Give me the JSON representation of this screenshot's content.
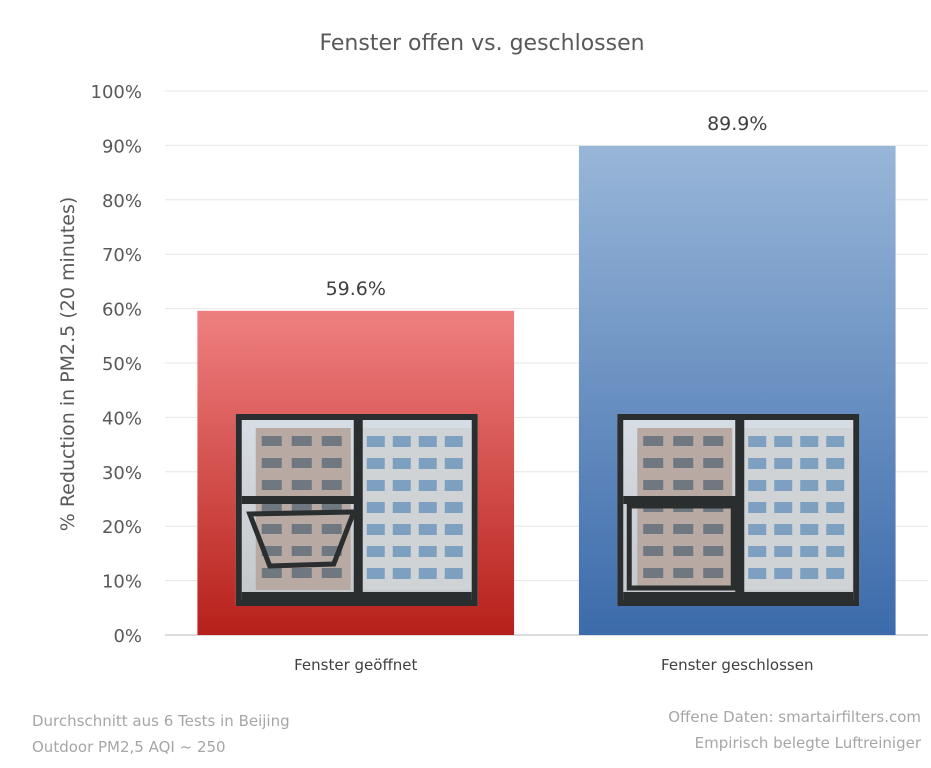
{
  "chart_data": {
    "type": "bar",
    "title": "Fenster offen vs. geschlossen",
    "ylabel": "% Reduction in PM2.5 (20 minutes)",
    "xlabel": "",
    "ylim": [
      0,
      100
    ],
    "yticks": [
      "0%",
      "10%",
      "20%",
      "30%",
      "40%",
      "50%",
      "60%",
      "70%",
      "80%",
      "90%",
      "100%"
    ],
    "categories": [
      "Fenster geöffnet",
      "Fenster geschlossen"
    ],
    "values": [
      59.6,
      89.9
    ],
    "value_labels": [
      "59.6%",
      "89.9%"
    ],
    "bar_colors": [
      [
        "#ef8080",
        "#b7201a"
      ],
      [
        "#98b6d8",
        "#3c6bab"
      ]
    ],
    "grid": true,
    "legend": "none"
  },
  "notes": {
    "left_line1": "Durchschnitt aus 6 Tests in Beijing",
    "left_line2": "Outdoor PM2,5 AQI ~ 250",
    "right_line1": "Offene Daten: smartairfilters.com",
    "right_line2": "Empirisch belegte Luftreiniger"
  }
}
